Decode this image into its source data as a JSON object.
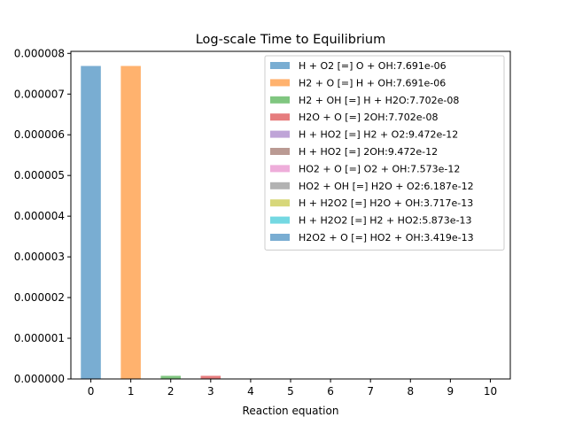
{
  "chart_data": {
    "type": "bar",
    "title": "Log-scale Time to Equilibrium",
    "xlabel": "Reaction equation",
    "ylabel": "",
    "categories": [
      "0",
      "1",
      "2",
      "3",
      "4",
      "5",
      "6",
      "7",
      "8",
      "9",
      "10"
    ],
    "values": [
      7.691e-06,
      7.691e-06,
      7.702e-08,
      7.702e-08,
      9.472e-12,
      9.472e-12,
      7.573e-12,
      6.187e-12,
      3.717e-13,
      5.873e-13,
      3.419e-13
    ],
    "ylim": [
      0,
      8.05e-06
    ],
    "yticks": [
      "0.000000",
      "0.000001",
      "0.000002",
      "0.000003",
      "0.000004",
      "0.000005",
      "0.000006",
      "0.000007",
      "0.000008"
    ],
    "ytick_values": [
      0,
      1e-06,
      2e-06,
      3e-06,
      4e-06,
      5e-06,
      6e-06,
      7e-06,
      8e-06
    ],
    "legend_position": "top-right",
    "grid": false,
    "colors": [
      "#1f77b4",
      "#ff7f0e",
      "#2ca02c",
      "#d62728",
      "#9467bd",
      "#8c564b",
      "#e377c2",
      "#7f7f7f",
      "#bcbd22",
      "#17becf",
      "#1f77b4"
    ],
    "legend": [
      "H + O2 [=] O + OH:7.691e-06",
      "H2 + O [=] H + OH:7.691e-06",
      "H2 + OH [=] H + H2O:7.702e-08",
      "H2O + O [=] 2OH:7.702e-08",
      "H + HO2 [=] H2 + O2:9.472e-12",
      "H + HO2 [=] 2OH:9.472e-12",
      "HO2 + O [=] O2 + OH:7.573e-12",
      "HO2 + OH [=] H2O + O2:6.187e-12",
      "H + H2O2 [=] H2O + OH:3.717e-13",
      "H + H2O2 [=] H2 + HO2:5.873e-13",
      "H2O2 + O [=] HO2 + OH:3.419e-13"
    ]
  }
}
